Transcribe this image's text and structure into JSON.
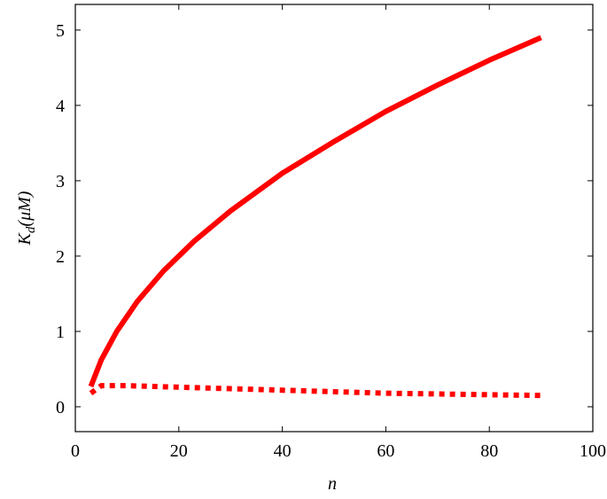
{
  "chart_data": {
    "type": "line",
    "xlabel": "n",
    "ylabel": [
      "K",
      "d",
      "(μM)"
    ],
    "series": [
      {
        "color": "#ff0000",
        "style": "solid",
        "x": [
          3,
          5,
          8,
          12,
          17,
          23,
          30,
          40,
          50,
          60,
          70,
          80,
          90
        ],
        "values": [
          0.27,
          0.62,
          1.0,
          1.4,
          1.8,
          2.2,
          2.6,
          3.1,
          3.52,
          3.92,
          4.27,
          4.6,
          4.9
        ]
      },
      {
        "color": "#ff0000",
        "style": "dotted",
        "x": [
          3,
          5,
          10,
          20,
          30,
          40,
          50,
          60,
          70,
          80,
          90
        ],
        "values": [
          0.18,
          0.28,
          0.28,
          0.26,
          0.24,
          0.22,
          0.2,
          0.18,
          0.17,
          0.16,
          0.15
        ]
      }
    ],
    "xlim": [
      0,
      100
    ],
    "xticks": [
      0,
      20,
      40,
      60,
      80,
      100
    ],
    "ylim": [
      -0.33,
      5.34
    ],
    "yticks": [
      0,
      1,
      2,
      3,
      4,
      5
    ]
  }
}
